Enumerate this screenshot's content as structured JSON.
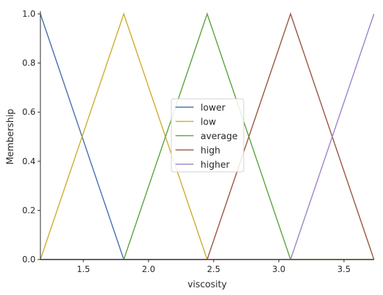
{
  "chart_data": {
    "type": "line",
    "title": "",
    "xlabel": "viscosity",
    "ylabel": "Membership",
    "xlim": [
      1.17,
      3.73
    ],
    "ylim": [
      0,
      1
    ],
    "grid": false,
    "legend_position": "center-right",
    "x_ticks": [
      "1.5",
      "2.0",
      "2.5",
      "3.0",
      "3.5"
    ],
    "y_ticks": [
      "0.0",
      "0.2",
      "0.4",
      "0.6",
      "0.8",
      "1.0"
    ],
    "series": [
      {
        "name": "lower",
        "color": "#4c72b0",
        "x": [
          1.17,
          1.81,
          3.73
        ],
        "y": [
          1,
          0,
          0
        ]
      },
      {
        "name": "low",
        "color": "#ccb035",
        "x": [
          1.17,
          1.81,
          2.45,
          3.73
        ],
        "y": [
          0,
          1,
          0,
          0
        ]
      },
      {
        "name": "average",
        "color": "#5fa544",
        "x": [
          1.17,
          1.81,
          2.45,
          3.09,
          3.73
        ],
        "y": [
          0,
          0,
          1,
          0,
          0
        ]
      },
      {
        "name": "high",
        "color": "#9b5a45",
        "x": [
          1.17,
          2.45,
          3.09,
          3.73
        ],
        "y": [
          0,
          0,
          1,
          0
        ]
      },
      {
        "name": "higher",
        "color": "#9f87c9",
        "x": [
          1.17,
          3.09,
          3.73
        ],
        "y": [
          0,
          0,
          1
        ]
      }
    ]
  }
}
